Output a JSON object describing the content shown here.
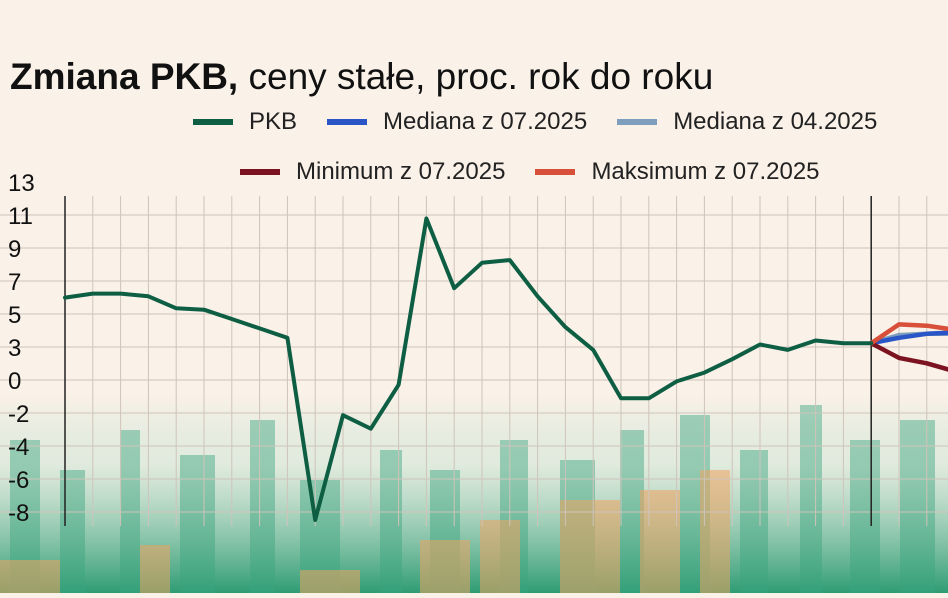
{
  "title": {
    "bold": "Zmiana PKB,",
    "rest": " ceny stałe, proc. rok do roku"
  },
  "legend": [
    {
      "name": "PKB",
      "color": "#0e5e44"
    },
    {
      "name": "Mediana z 07.2025",
      "color": "#2a55c6"
    },
    {
      "name": "Mediana z 04.2025",
      "color": "#7d9ebc"
    },
    {
      "name": "Minimum z 07.2025",
      "color": "#7b1420"
    },
    {
      "name": "Maksimum z 07.2025",
      "color": "#d8503a"
    }
  ],
  "chart_data": {
    "type": "line",
    "y_ticks": [
      "13",
      "11",
      "9",
      "7",
      "5",
      "3",
      "0",
      "-2",
      "-4",
      "-6",
      "-8"
    ],
    "grid": true,
    "series": [
      {
        "name": "PKB",
        "values": [
          6.0,
          6.3,
          6.3,
          6.1,
          5.2,
          5.1,
          4.4,
          3.7,
          3.0,
          -8.4,
          -2.2,
          -3.0,
          -0.4,
          11.9,
          6.7,
          8.6,
          8.8,
          6.1,
          3.8,
          2.1,
          -1.2,
          -1.2,
          -0.2,
          0.4,
          1.4,
          2.5,
          2.1,
          2.8,
          2.6,
          2.6
        ]
      },
      {
        "name": "Mediana z 07.2025",
        "values": [
          2.6,
          3.0,
          3.3,
          3.4
        ]
      },
      {
        "name": "Mediana z 04.2025",
        "values": [
          2.6,
          3.2,
          3.3,
          3.3
        ]
      },
      {
        "name": "Minimum z 07.2025",
        "values": [
          2.6,
          1.5,
          1.1,
          0.5
        ]
      },
      {
        "name": "Maksimum z 07.2025",
        "values": [
          2.6,
          4.0,
          3.9,
          3.6
        ]
      }
    ]
  }
}
